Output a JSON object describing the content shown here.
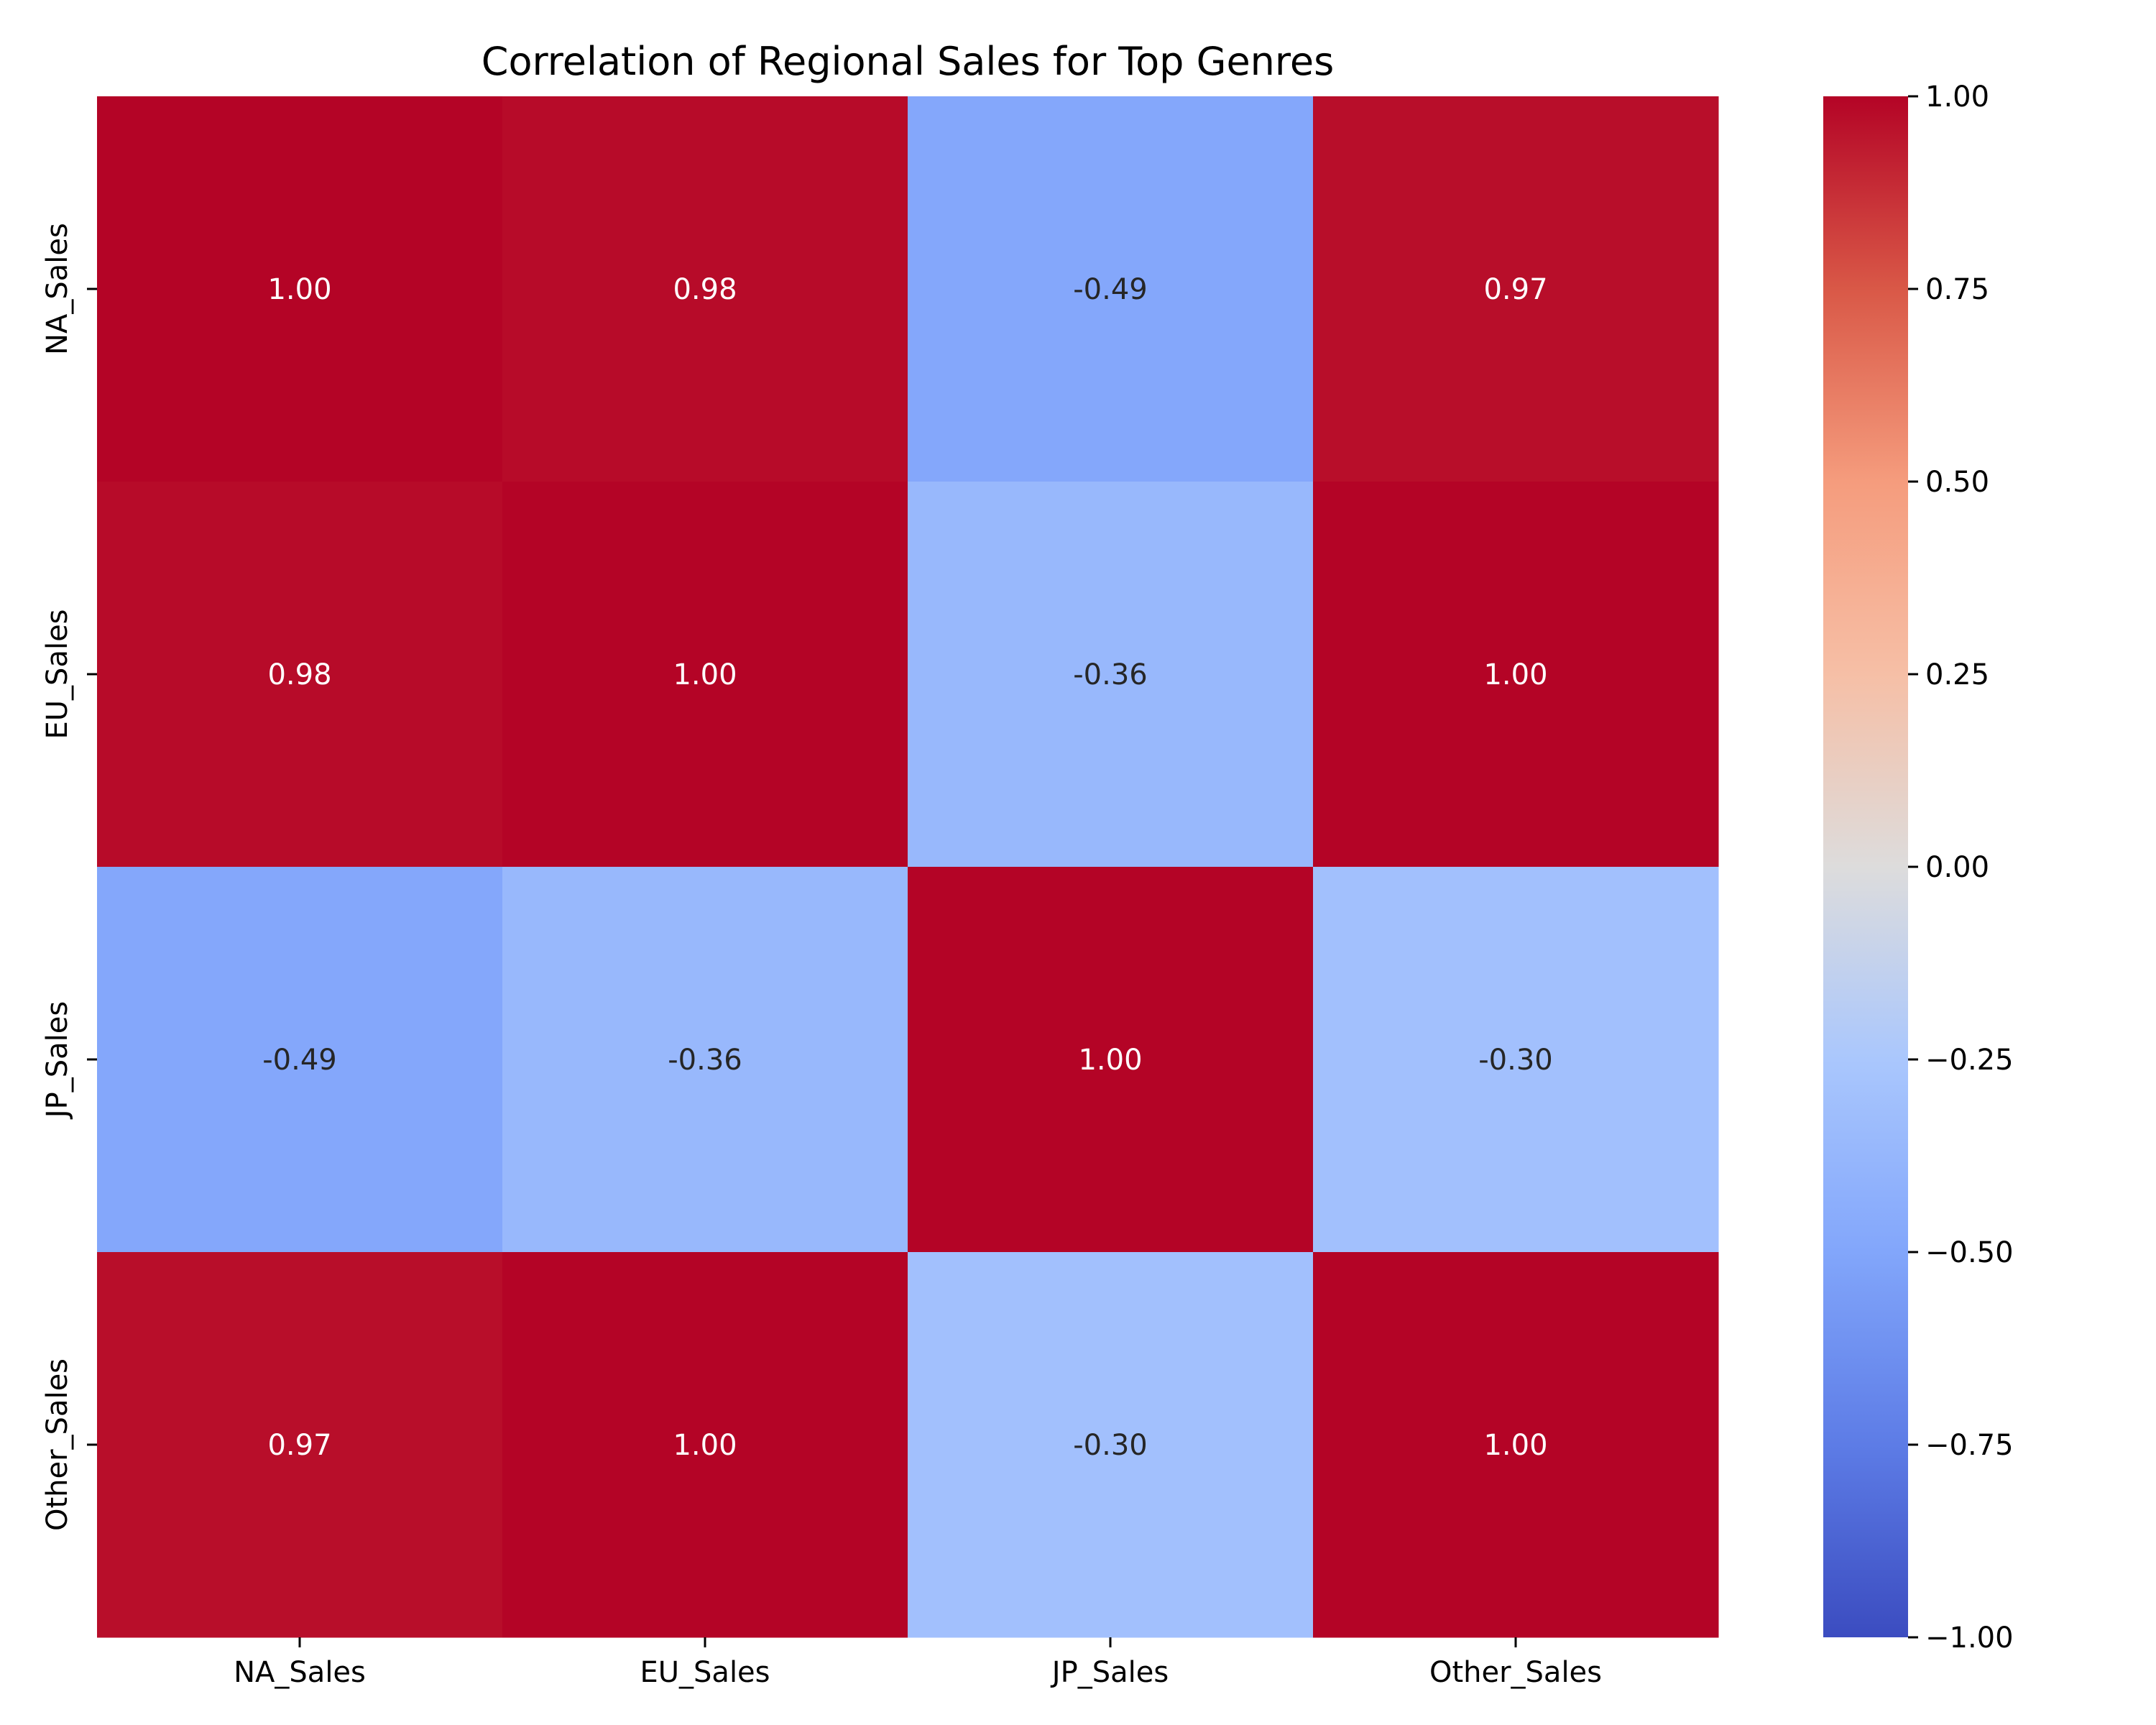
{
  "chart_data": {
    "type": "heatmap",
    "title": "Correlation of Regional Sales for Top Genres",
    "x_labels": [
      "NA_Sales",
      "EU_Sales",
      "JP_Sales",
      "Other_Sales"
    ],
    "y_labels": [
      "NA_Sales",
      "EU_Sales",
      "JP_Sales",
      "Other_Sales"
    ],
    "values": [
      [
        1.0,
        0.98,
        -0.49,
        0.97
      ],
      [
        0.98,
        1.0,
        -0.36,
        1.0
      ],
      [
        -0.49,
        -0.36,
        1.0,
        -0.3
      ],
      [
        0.97,
        1.0,
        -0.3,
        1.0
      ]
    ],
    "value_format": "0.00",
    "colormap": "coolwarm",
    "colorbar": {
      "range": [
        -1.0,
        1.0
      ],
      "ticks": [
        1.0,
        0.75,
        0.5,
        0.25,
        0.0,
        -0.25,
        -0.5,
        -0.75,
        -1.0
      ],
      "tick_labels": [
        "1.00",
        "0.75",
        "0.50",
        "0.25",
        "0.00",
        "−0.25",
        "−0.50",
        "−0.75",
        "−1.00"
      ]
    }
  }
}
